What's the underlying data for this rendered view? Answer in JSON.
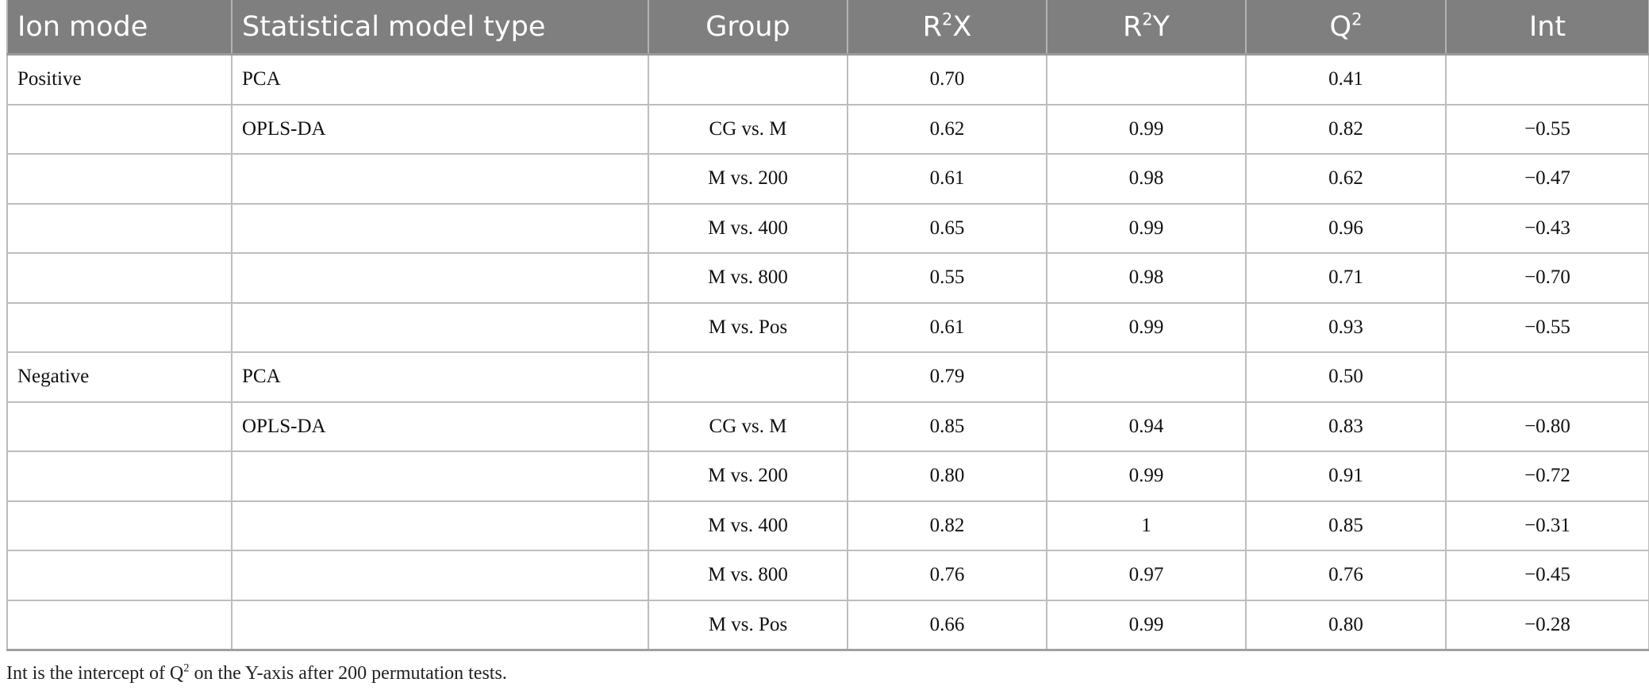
{
  "table": {
    "headers": {
      "ion_mode": "Ion mode",
      "model_type": "Statistical model type",
      "group": "Group",
      "r2x_base": "R",
      "r2x_sup": "2",
      "r2x_tail": "X",
      "r2y_base": "R",
      "r2y_sup": "2",
      "r2y_tail": "Y",
      "q2_base": "Q",
      "q2_sup": "2",
      "int": "Int"
    },
    "rows": [
      {
        "ion_mode": "Positive",
        "model_type": "PCA",
        "group": "",
        "r2x": "0.70",
        "r2y": "",
        "q2": "0.41",
        "int": ""
      },
      {
        "ion_mode": "",
        "model_type": "OPLS-DA",
        "group": "CG vs. M",
        "r2x": "0.62",
        "r2y": "0.99",
        "q2": "0.82",
        "int": "−0.55"
      },
      {
        "ion_mode": "",
        "model_type": "",
        "group": "M vs. 200",
        "r2x": "0.61",
        "r2y": "0.98",
        "q2": "0.62",
        "int": "−0.47"
      },
      {
        "ion_mode": "",
        "model_type": "",
        "group": "M vs. 400",
        "r2x": "0.65",
        "r2y": "0.99",
        "q2": "0.96",
        "int": "−0.43"
      },
      {
        "ion_mode": "",
        "model_type": "",
        "group": "M vs. 800",
        "r2x": "0.55",
        "r2y": "0.98",
        "q2": "0.71",
        "int": "−0.70"
      },
      {
        "ion_mode": "",
        "model_type": "",
        "group": "M vs. Pos",
        "r2x": "0.61",
        "r2y": "0.99",
        "q2": "0.93",
        "int": "−0.55"
      },
      {
        "ion_mode": "Negative",
        "model_type": "PCA",
        "group": "",
        "r2x": "0.79",
        "r2y": "",
        "q2": "0.50",
        "int": ""
      },
      {
        "ion_mode": "",
        "model_type": "OPLS-DA",
        "group": "CG vs. M",
        "r2x": "0.85",
        "r2y": "0.94",
        "q2": "0.83",
        "int": "−0.80"
      },
      {
        "ion_mode": "",
        "model_type": "",
        "group": "M vs. 200",
        "r2x": "0.80",
        "r2y": "0.99",
        "q2": "0.91",
        "int": "−0.72"
      },
      {
        "ion_mode": "",
        "model_type": "",
        "group": "M vs. 400",
        "r2x": "0.82",
        "r2y": "1",
        "q2": "0.85",
        "int": "−0.31"
      },
      {
        "ion_mode": "",
        "model_type": "",
        "group": "M vs. 800",
        "r2x": "0.76",
        "r2y": "0.97",
        "q2": "0.76",
        "int": "−0.45"
      },
      {
        "ion_mode": "",
        "model_type": "",
        "group": "M vs. Pos",
        "r2x": "0.66",
        "r2y": "0.99",
        "q2": "0.80",
        "int": "−0.28"
      }
    ]
  },
  "footnote": {
    "before": "Int is the intercept of Q",
    "sup": "2",
    "after": " on the Y-axis after 200 permutation tests."
  }
}
